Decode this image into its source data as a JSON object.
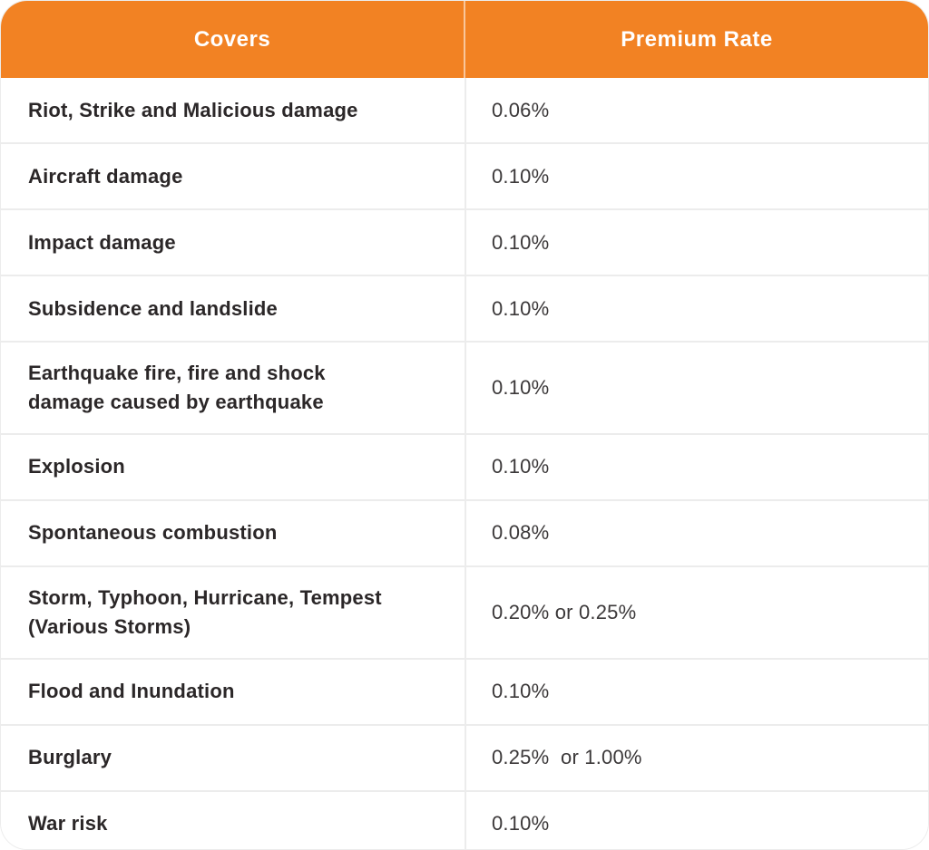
{
  "table": {
    "columns": [
      {
        "label": "Covers"
      },
      {
        "label": "Premium Rate"
      }
    ],
    "rows": [
      {
        "cover": "Riot, Strike and Malicious damage",
        "rate": "0.06%"
      },
      {
        "cover": "Aircraft damage",
        "rate": "0.10%"
      },
      {
        "cover": "Impact damage",
        "rate": "0.10%"
      },
      {
        "cover": "Subsidence and landslide",
        "rate": "0.10%"
      },
      {
        "cover": "Earthquake fire, fire and shock\ndamage caused by earthquake",
        "rate": "0.10%"
      },
      {
        "cover": "Explosion",
        "rate": "0.10%"
      },
      {
        "cover": "Spontaneous combustion",
        "rate": "0.08%"
      },
      {
        "cover": "Storm, Typhoon, Hurricane, Tempest\n(Various Storms)",
        "rate": "0.20% or 0.25%"
      },
      {
        "cover": "Flood and Inundation",
        "rate": "0.10%"
      },
      {
        "cover": "Burglary",
        "rate": "0.25%  or 1.00%"
      },
      {
        "cover": "War risk",
        "rate": "0.10%"
      }
    ],
    "colors": {
      "header_bg": "#F28223",
      "header_text": "#FFFFFF",
      "row_border": "#ECECEC",
      "label_text": "#2B2728",
      "value_text": "#3B3839"
    }
  }
}
